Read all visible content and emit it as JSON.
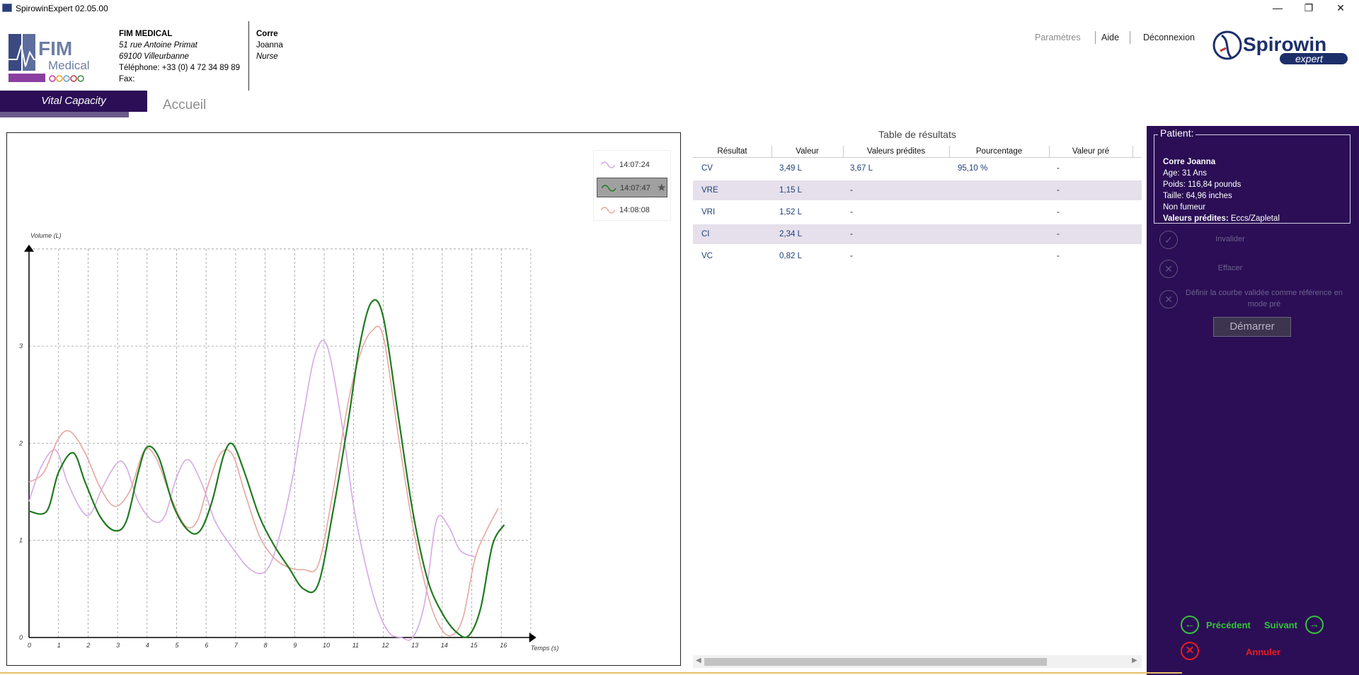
{
  "window": {
    "title": "SpirowinExpert 02.05.00"
  },
  "header": {
    "org": {
      "name": "FIM MEDICAL",
      "address1": "51 rue Antoine Primat",
      "address2": "69100 Villeurbanne",
      "phone": "Téléphone: +33 (0) 4 72 34 89 89",
      "fax": "Fax:"
    },
    "user": {
      "last_name": "Corre",
      "first_name": "Joanna",
      "role": "Nurse"
    },
    "nav": {
      "params": "Paramètres",
      "help": "Aide",
      "logout": "Déconnexion"
    },
    "logo": {
      "line1": "FIM",
      "line2": "Medical"
    },
    "brand": {
      "line1": "Spirowin",
      "line2": "expert"
    }
  },
  "tabs": {
    "active": "Vital Capacity",
    "home": "Accueil"
  },
  "chart_data": {
    "type": "line",
    "xlabel": "Temps (s)",
    "ylabel": "Volume (L)",
    "xlim": [
      0,
      17
    ],
    "ylim": [
      0,
      4
    ],
    "x_ticks": [
      "0",
      "1",
      "2",
      "3",
      "4",
      "5",
      "6",
      "7",
      "8",
      "9",
      "10",
      "11",
      "12",
      "13",
      "14",
      "15",
      "16"
    ],
    "y_ticks": [
      "0",
      "1",
      "2",
      "3"
    ],
    "grid": true,
    "legend_position": "top-right",
    "colors": {
      "s1": "#d6a8e6",
      "s2": "#1f7a1f",
      "s3": "#e6a6a0"
    },
    "series": [
      {
        "name": "14:07:24",
        "color": "#d6a8e6",
        "points": [
          [
            0,
            1.4
          ],
          [
            0.4,
            1.75
          ],
          [
            0.9,
            1.93
          ],
          [
            1.3,
            1.6
          ],
          [
            1.8,
            1.3
          ],
          [
            2.1,
            1.28
          ],
          [
            2.5,
            1.55
          ],
          [
            3.0,
            1.8
          ],
          [
            3.3,
            1.75
          ],
          [
            3.7,
            1.4
          ],
          [
            4.2,
            1.2
          ],
          [
            4.6,
            1.25
          ],
          [
            5.0,
            1.65
          ],
          [
            5.4,
            1.83
          ],
          [
            5.9,
            1.55
          ],
          [
            6.3,
            1.2
          ],
          [
            6.9,
            0.92
          ],
          [
            7.5,
            0.7
          ],
          [
            8.0,
            0.68
          ],
          [
            8.4,
            0.95
          ],
          [
            8.9,
            1.6
          ],
          [
            9.3,
            2.3
          ],
          [
            9.7,
            2.92
          ],
          [
            10.1,
            3.0
          ],
          [
            10.6,
            2.2
          ],
          [
            11.0,
            1.35
          ],
          [
            11.4,
            0.75
          ],
          [
            11.8,
            0.3
          ],
          [
            12.2,
            0.05
          ],
          [
            12.6,
            0.0
          ],
          [
            13.0,
            0.0
          ],
          [
            13.4,
            0.35
          ],
          [
            13.8,
            1.2
          ],
          [
            14.2,
            1.15
          ],
          [
            14.6,
            0.9
          ],
          [
            15.1,
            0.83
          ]
        ]
      },
      {
        "name": "14:07:47",
        "color": "#1f7a1f",
        "points": [
          [
            0,
            1.3
          ],
          [
            0.6,
            1.3
          ],
          [
            1.0,
            1.7
          ],
          [
            1.5,
            1.9
          ],
          [
            1.9,
            1.6
          ],
          [
            2.4,
            1.25
          ],
          [
            2.9,
            1.1
          ],
          [
            3.3,
            1.2
          ],
          [
            3.7,
            1.7
          ],
          [
            4.0,
            1.96
          ],
          [
            4.4,
            1.85
          ],
          [
            4.9,
            1.35
          ],
          [
            5.4,
            1.1
          ],
          [
            5.8,
            1.1
          ],
          [
            6.2,
            1.4
          ],
          [
            6.6,
            1.88
          ],
          [
            6.9,
            1.99
          ],
          [
            7.3,
            1.7
          ],
          [
            7.8,
            1.25
          ],
          [
            8.3,
            0.95
          ],
          [
            8.8,
            0.72
          ],
          [
            9.3,
            0.5
          ],
          [
            9.8,
            0.55
          ],
          [
            10.3,
            1.3
          ],
          [
            10.8,
            2.2
          ],
          [
            11.2,
            3.0
          ],
          [
            11.6,
            3.45
          ],
          [
            12.0,
            3.3
          ],
          [
            12.5,
            2.3
          ],
          [
            13.0,
            1.3
          ],
          [
            13.5,
            0.6
          ],
          [
            14.0,
            0.25
          ],
          [
            14.5,
            0.05
          ],
          [
            14.9,
            0.02
          ],
          [
            15.3,
            0.3
          ],
          [
            15.7,
            0.95
          ],
          [
            16.1,
            1.16
          ]
        ]
      },
      {
        "name": "14:08:08",
        "color": "#e6a6a0",
        "points": [
          [
            0,
            1.6
          ],
          [
            0.5,
            1.7
          ],
          [
            1.0,
            2.05
          ],
          [
            1.4,
            2.12
          ],
          [
            1.9,
            1.9
          ],
          [
            2.4,
            1.55
          ],
          [
            2.9,
            1.35
          ],
          [
            3.4,
            1.5
          ],
          [
            3.9,
            1.92
          ],
          [
            4.3,
            1.85
          ],
          [
            4.8,
            1.45
          ],
          [
            5.3,
            1.15
          ],
          [
            5.7,
            1.2
          ],
          [
            6.1,
            1.6
          ],
          [
            6.5,
            1.9
          ],
          [
            6.9,
            1.88
          ],
          [
            7.3,
            1.5
          ],
          [
            7.8,
            1.05
          ],
          [
            8.3,
            0.82
          ],
          [
            8.8,
            0.72
          ],
          [
            9.3,
            0.7
          ],
          [
            9.8,
            0.75
          ],
          [
            10.3,
            1.5
          ],
          [
            10.8,
            2.4
          ],
          [
            11.2,
            2.9
          ],
          [
            11.6,
            3.15
          ],
          [
            12.0,
            3.1
          ],
          [
            12.5,
            2.1
          ],
          [
            13.0,
            1.15
          ],
          [
            13.5,
            0.45
          ],
          [
            13.9,
            0.12
          ],
          [
            14.3,
            0.02
          ],
          [
            14.7,
            0.2
          ],
          [
            15.1,
            0.8
          ],
          [
            15.5,
            1.1
          ],
          [
            15.9,
            1.33
          ]
        ]
      }
    ]
  },
  "results": {
    "title": "Table de résultats",
    "columns": [
      "Résultat",
      "Valeur",
      "Valeurs prédites",
      "Pourcentage",
      "Valeur pré"
    ],
    "rows": [
      {
        "name": "CV",
        "value": "3,49 L",
        "predicted": "3,67 L",
        "percent": "95,10 %",
        "pre": "-"
      },
      {
        "name": "VRE",
        "value": "1,15 L",
        "predicted": "-",
        "percent": "",
        "pre": "-"
      },
      {
        "name": "VRI",
        "value": "1,52 L",
        "predicted": "-",
        "percent": "",
        "pre": "-"
      },
      {
        "name": "CI",
        "value": "2,34 L",
        "predicted": "-",
        "percent": "",
        "pre": "-"
      },
      {
        "name": "VC",
        "value": "0,82 L",
        "predicted": "-",
        "percent": "",
        "pre": "-"
      }
    ]
  },
  "patient": {
    "legend": "Patient:",
    "name": "Corre Joanna",
    "age": "Age: 31 Ans",
    "weight": "Poids: 116,84 pounds",
    "height": "Taille: 64,96 inches",
    "smoker": "Non fumeur",
    "predicted_label": "Valeurs prédites:",
    "predicted_value": " Eccs/Zapletal"
  },
  "actions": {
    "invalidate": "Invalider",
    "erase": "Effacer",
    "reference": "Définir la courbe validée comme référence en mode pré",
    "start": "Démarrer",
    "previous": "Précédent",
    "next": "Suivant",
    "cancel": "Annuler"
  }
}
